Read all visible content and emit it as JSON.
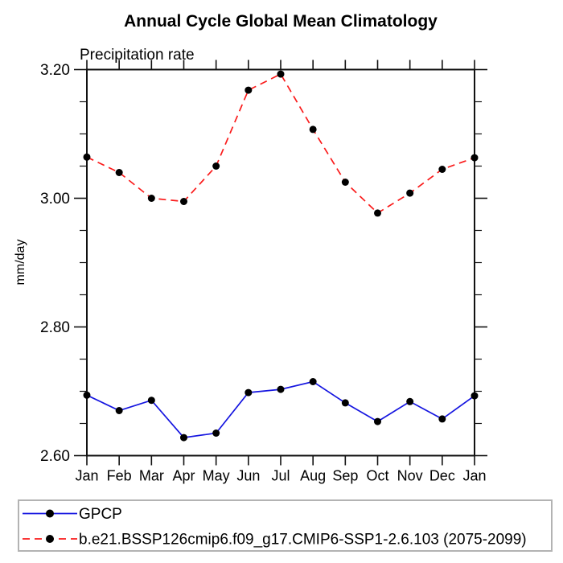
{
  "page": {
    "background": "#ffffff"
  },
  "colors": {
    "axis": "#111111",
    "legend_border": "#b3b3b3",
    "marker": "#000000",
    "gpcp_blue": "#1515e0",
    "model_red": "#fa1a1a",
    "background": "#ffffff"
  },
  "chart_data": {
    "type": "line",
    "title": "Annual Cycle Global Mean Climatology",
    "subtitle": "Precipitation rate",
    "ylabel": "mm/day",
    "xlabel": "",
    "categories": [
      "Jan",
      "Feb",
      "Mar",
      "Apr",
      "May",
      "Jun",
      "Jul",
      "Aug",
      "Sep",
      "Oct",
      "Nov",
      "Dec",
      "Jan"
    ],
    "ylim": [
      2.6,
      3.2
    ],
    "yticks_major": {
      "values": [
        3.2,
        3.0,
        2.8,
        2.6
      ],
      "labels": [
        "3.20",
        "3.00",
        "2.80",
        "2.60"
      ]
    },
    "ytick_minor_step": 0.05,
    "grid": false,
    "legend_position": "bottom-box",
    "series": [
      {
        "name": "GPCP",
        "color_key": "gpcp_blue",
        "line_style": "solid",
        "marker": "filled-circle",
        "values": [
          2.694,
          2.67,
          2.686,
          2.628,
          2.635,
          2.698,
          2.703,
          2.715,
          2.682,
          2.653,
          2.684,
          2.657,
          2.693
        ]
      },
      {
        "name": "b.e21.BSSP126cmip6.f09_g17.CMIP6-SSP1-2.6.103 (2075-2099)",
        "color_key": "model_red",
        "line_style": "dashed",
        "marker": "filled-circle",
        "values": [
          3.064,
          3.04,
          3.0,
          2.995,
          3.05,
          3.168,
          3.193,
          3.107,
          3.025,
          2.977,
          3.008,
          3.045,
          3.063
        ]
      }
    ]
  }
}
